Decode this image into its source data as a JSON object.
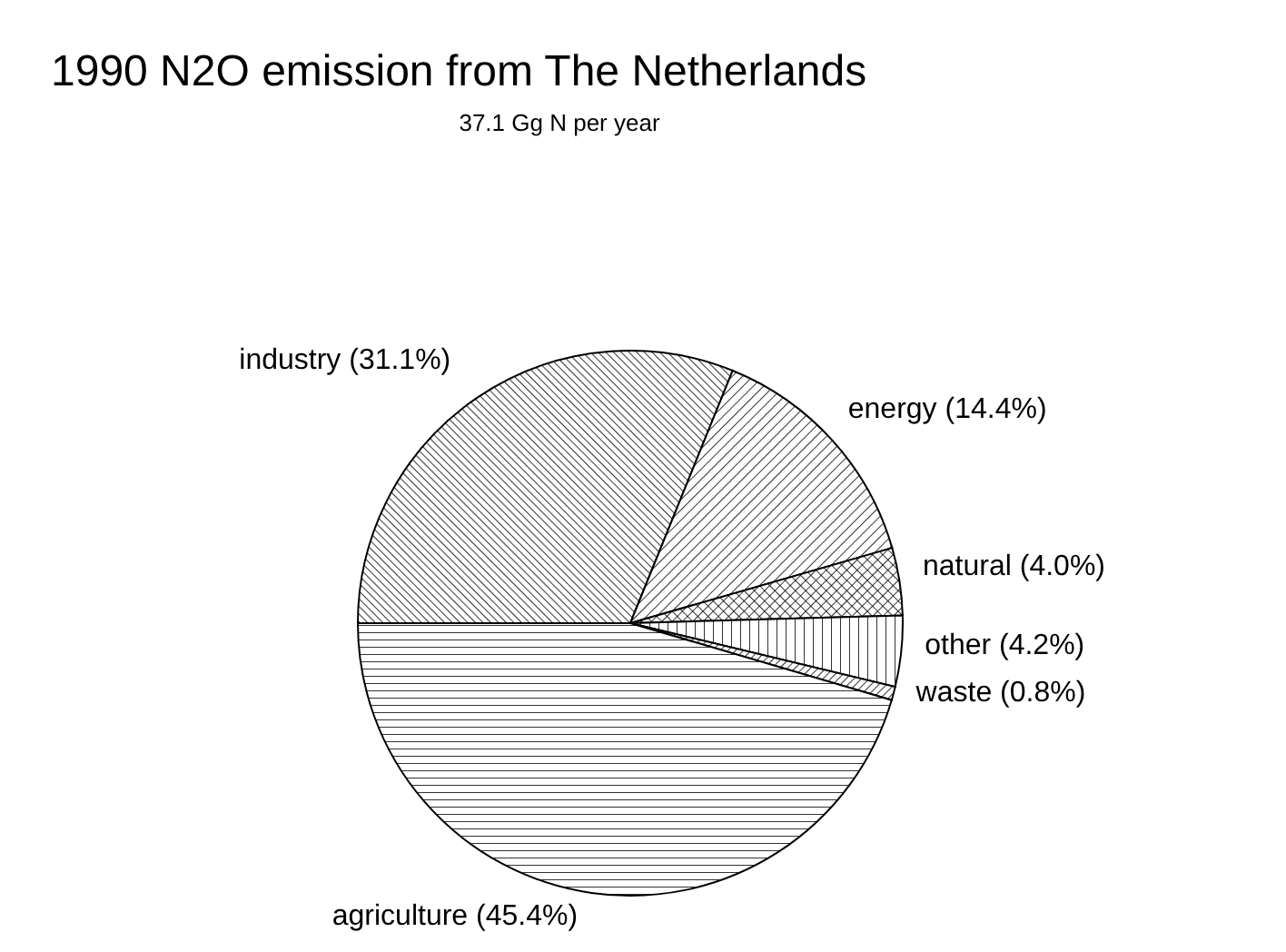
{
  "chart_data": {
    "type": "pie",
    "title": "1990 N2O emission from The Netherlands",
    "subtitle": "37.1 Gg N per year",
    "categories": [
      "industry",
      "energy",
      "natural",
      "other",
      "waste",
      "agriculture"
    ],
    "values": [
      31.1,
      14.4,
      4.0,
      4.2,
      0.8,
      45.4
    ],
    "value_labels": [
      "(31.1%)",
      "(14.4%)",
      "(4.0%)",
      "(4.2%)",
      "(0.8%)",
      "(45.4%)"
    ],
    "colors": [
      "#000000",
      "#000000",
      "#000000",
      "#000000",
      "#000000",
      "#000000"
    ],
    "legend": false
  }
}
